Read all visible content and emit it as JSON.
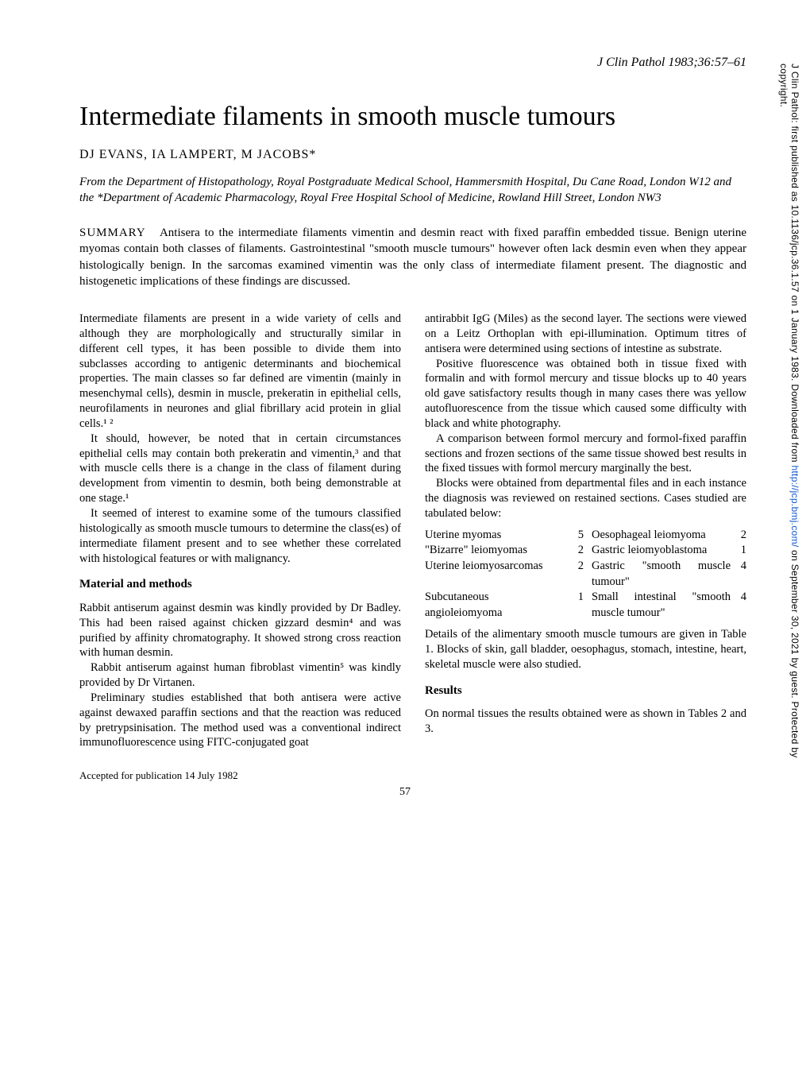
{
  "journal_citation": "J Clin Pathol 1983;36:57–61",
  "title": "Intermediate filaments in smooth muscle tumours",
  "authors": "DJ EVANS, IA LAMPERT, M JACOBS*",
  "affiliation": "From the Department of Histopathology, Royal Postgraduate Medical School, Hammersmith Hospital, Du Cane Road, London W12 and the *Department of Academic Pharmacology, Royal Free Hospital School of Medicine, Rowland Hill Street, London NW3",
  "summary_label": "SUMMARY",
  "summary_text": "Antisera to the intermediate filaments vimentin and desmin react with fixed paraffin embedded tissue. Benign uterine myomas contain both classes of filaments. Gastrointestinal \"smooth muscle tumours\" however often lack desmin even when they appear histologically benign. In the sarcomas examined vimentin was the only class of intermediate filament present. The diagnostic and histogenetic implications of these findings are discussed.",
  "left_column": {
    "p1": "Intermediate filaments are present in a wide variety of cells and although they are morphologically and structurally similar in different cell types, it has been possible to divide them into subclasses according to antigenic determinants and biochemical properties. The main classes so far defined are vimentin (mainly in mesenchymal cells), desmin in muscle, prekeratin in epithelial cells, neurofilaments in neurones and glial fibrillary acid protein in glial cells.¹ ²",
    "p2": "It should, however, be noted that in certain circumstances epithelial cells may contain both prekeratin and vimentin,³ and that with muscle cells there is a change in the class of filament during development from vimentin to desmin, both being demonstrable at one stage.¹",
    "p3": "It seemed of interest to examine some of the tumours classified histologically as smooth muscle tumours to determine the class(es) of intermediate filament present and to see whether these correlated with histological features or with malignancy.",
    "section1": "Material and methods",
    "p4": "Rabbit antiserum against desmin was kindly provided by Dr Badley. This had been raised against chicken gizzard desmin⁴ and was purified by affinity chromatography. It showed strong cross reaction with human desmin.",
    "p5": "Rabbit antiserum against human fibroblast vimentin⁵ was kindly provided by Dr Virtanen.",
    "p6": "Preliminary studies established that both antisera were active against dewaxed paraffin sections and that the reaction was reduced by pretrypsinisation. The method used was a conventional indirect immunofluorescence using FITC-conjugated goat",
    "accepted": "Accepted for publication 14 July 1982"
  },
  "right_column": {
    "p1": "antirabbit IgG (Miles) as the second layer. The sections were viewed on a Leitz Orthoplan with epi-illumination. Optimum titres of antisera were determined using sections of intestine as substrate.",
    "p2": "Positive fluorescence was obtained both in tissue fixed with formalin and with formol mercury and tissue blocks up to 40 years old gave satisfactory results though in many cases there was yellow autofluorescence from the tissue which caused some difficulty with black and white photography.",
    "p3": "A comparison between formol mercury and formol-fixed paraffin sections and frozen sections of the same tissue showed best results in the fixed tissues with formol mercury marginally the best.",
    "p4": "Blocks were obtained from departmental files and in each instance the diagnosis was reviewed on restained sections. Cases studied are tabulated below:",
    "cases": [
      {
        "left": "Uterine myomas",
        "nl": "5",
        "right": "Oesophageal leiomyoma",
        "nr": "2"
      },
      {
        "left": "\"Bizarre\" leiomyomas",
        "nl": "2",
        "right": "Gastric leiomyoblastoma",
        "nr": "1"
      },
      {
        "left": "Uterine leiomyosarcomas",
        "nl": "2",
        "right": "Gastric \"smooth muscle tumour\"",
        "nr": "4"
      },
      {
        "left": "Subcutaneous angioleiomyoma",
        "nl": "1",
        "right": "Small intestinal \"smooth muscle tumour\"",
        "nr": "4"
      }
    ],
    "p5": "Details of the alimentary smooth muscle tumours are given in Table 1. Blocks of skin, gall bladder, oesophagus, stomach, intestine, heart, skeletal muscle were also studied.",
    "section2": "Results",
    "p6": "On normal tissues the results obtained were as shown in Tables 2 and 3."
  },
  "page_number": "57",
  "sidebar_text_before": "J Clin Pathol: first published as 10.1136/jcp.36.1.57 on 1 January 1983. Downloaded from ",
  "sidebar_link_text": "http://jcp.bmj.com/",
  "sidebar_text_after": " on September 30, 2021 by guest. Protected by copyright."
}
